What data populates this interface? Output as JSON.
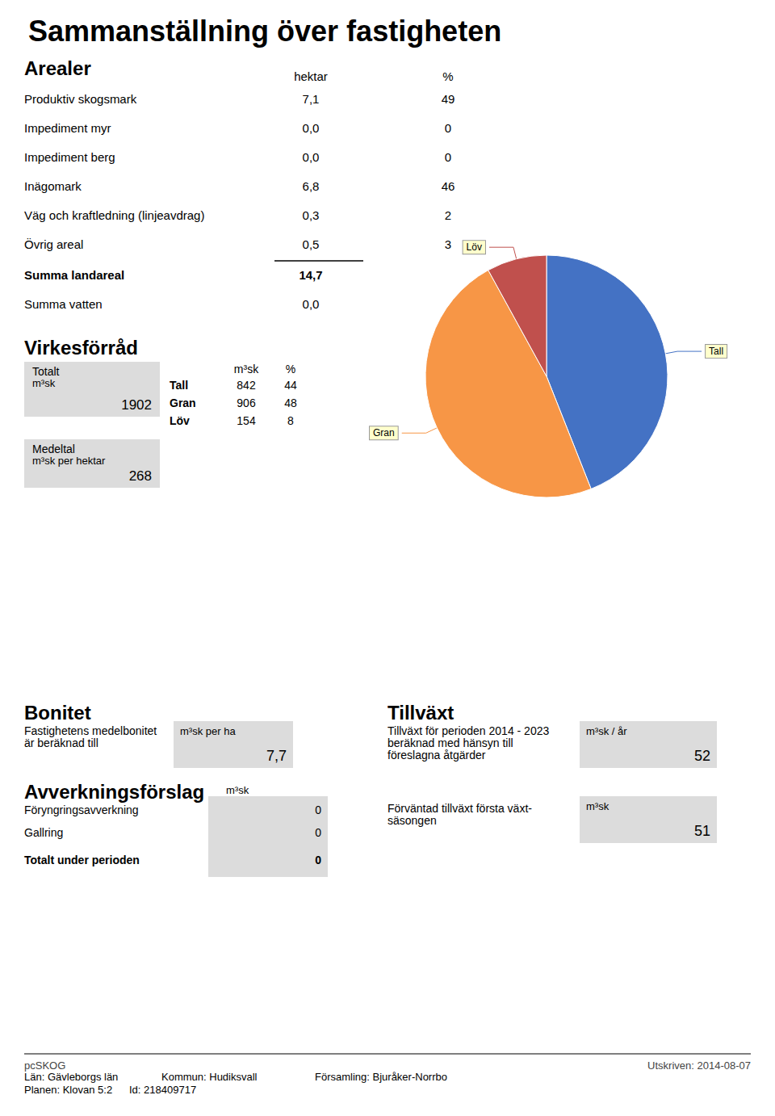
{
  "chart_data": {
    "type": "pie",
    "title": "Sammanställning över fastigheten",
    "categories": [
      "Tall",
      "Gran",
      "Löv"
    ],
    "values": [
      44,
      48,
      8
    ],
    "colors": [
      "#4472C4",
      "#F79646",
      "#C0504D"
    ],
    "annotations": [
      "Arealer",
      "hektar",
      "%",
      "Produktiv skogsmark",
      "7,1",
      "49",
      "Impediment myr",
      "0,0",
      "0",
      "Impediment berg",
      "0,0",
      "0",
      "Inägomark",
      "6,8",
      "46",
      "Väg och kraftledning (linjeavdrag)",
      "0,3",
      "2",
      "Övrig areal",
      "0,5",
      "3",
      "Summa landareal",
      "14,7",
      "Summa vatten",
      "0,0",
      "Virkesförråd",
      "Totalt",
      "m³sk",
      "1902",
      "Medeltal",
      "m³sk per hektar",
      "268",
      "m³sk",
      "%",
      "Tall",
      "842",
      "44",
      "Gran",
      "906",
      "48",
      "Löv",
      "154",
      "8",
      "Bonitet",
      "Fastighetens medelbonitet",
      "är beräknad till",
      "m³sk per ha",
      "7,7",
      "Tillväxt",
      "Tillväxt för perioden 2014 - 2023",
      "beräknad med hänsyn till",
      "föreslagna åtgärder",
      "m³sk / år",
      "52",
      "Avverkningsförslag",
      "m³sk",
      "Föryngringsavverkning",
      "0",
      "Gallring",
      "0",
      "Totalt under perioden",
      "0",
      "Förväntad tillväxt första växt-",
      "säsongen",
      "m³sk",
      "51",
      "pcSKOG",
      "Utskriven: 2014-08-07",
      "Län: Gävleborgs län",
      "Kommun: Hudiksvall",
      "Församling: Bjuråker-Norrbo",
      "Planen: Klovan 5:2",
      "Id: 218409717"
    ]
  }
}
